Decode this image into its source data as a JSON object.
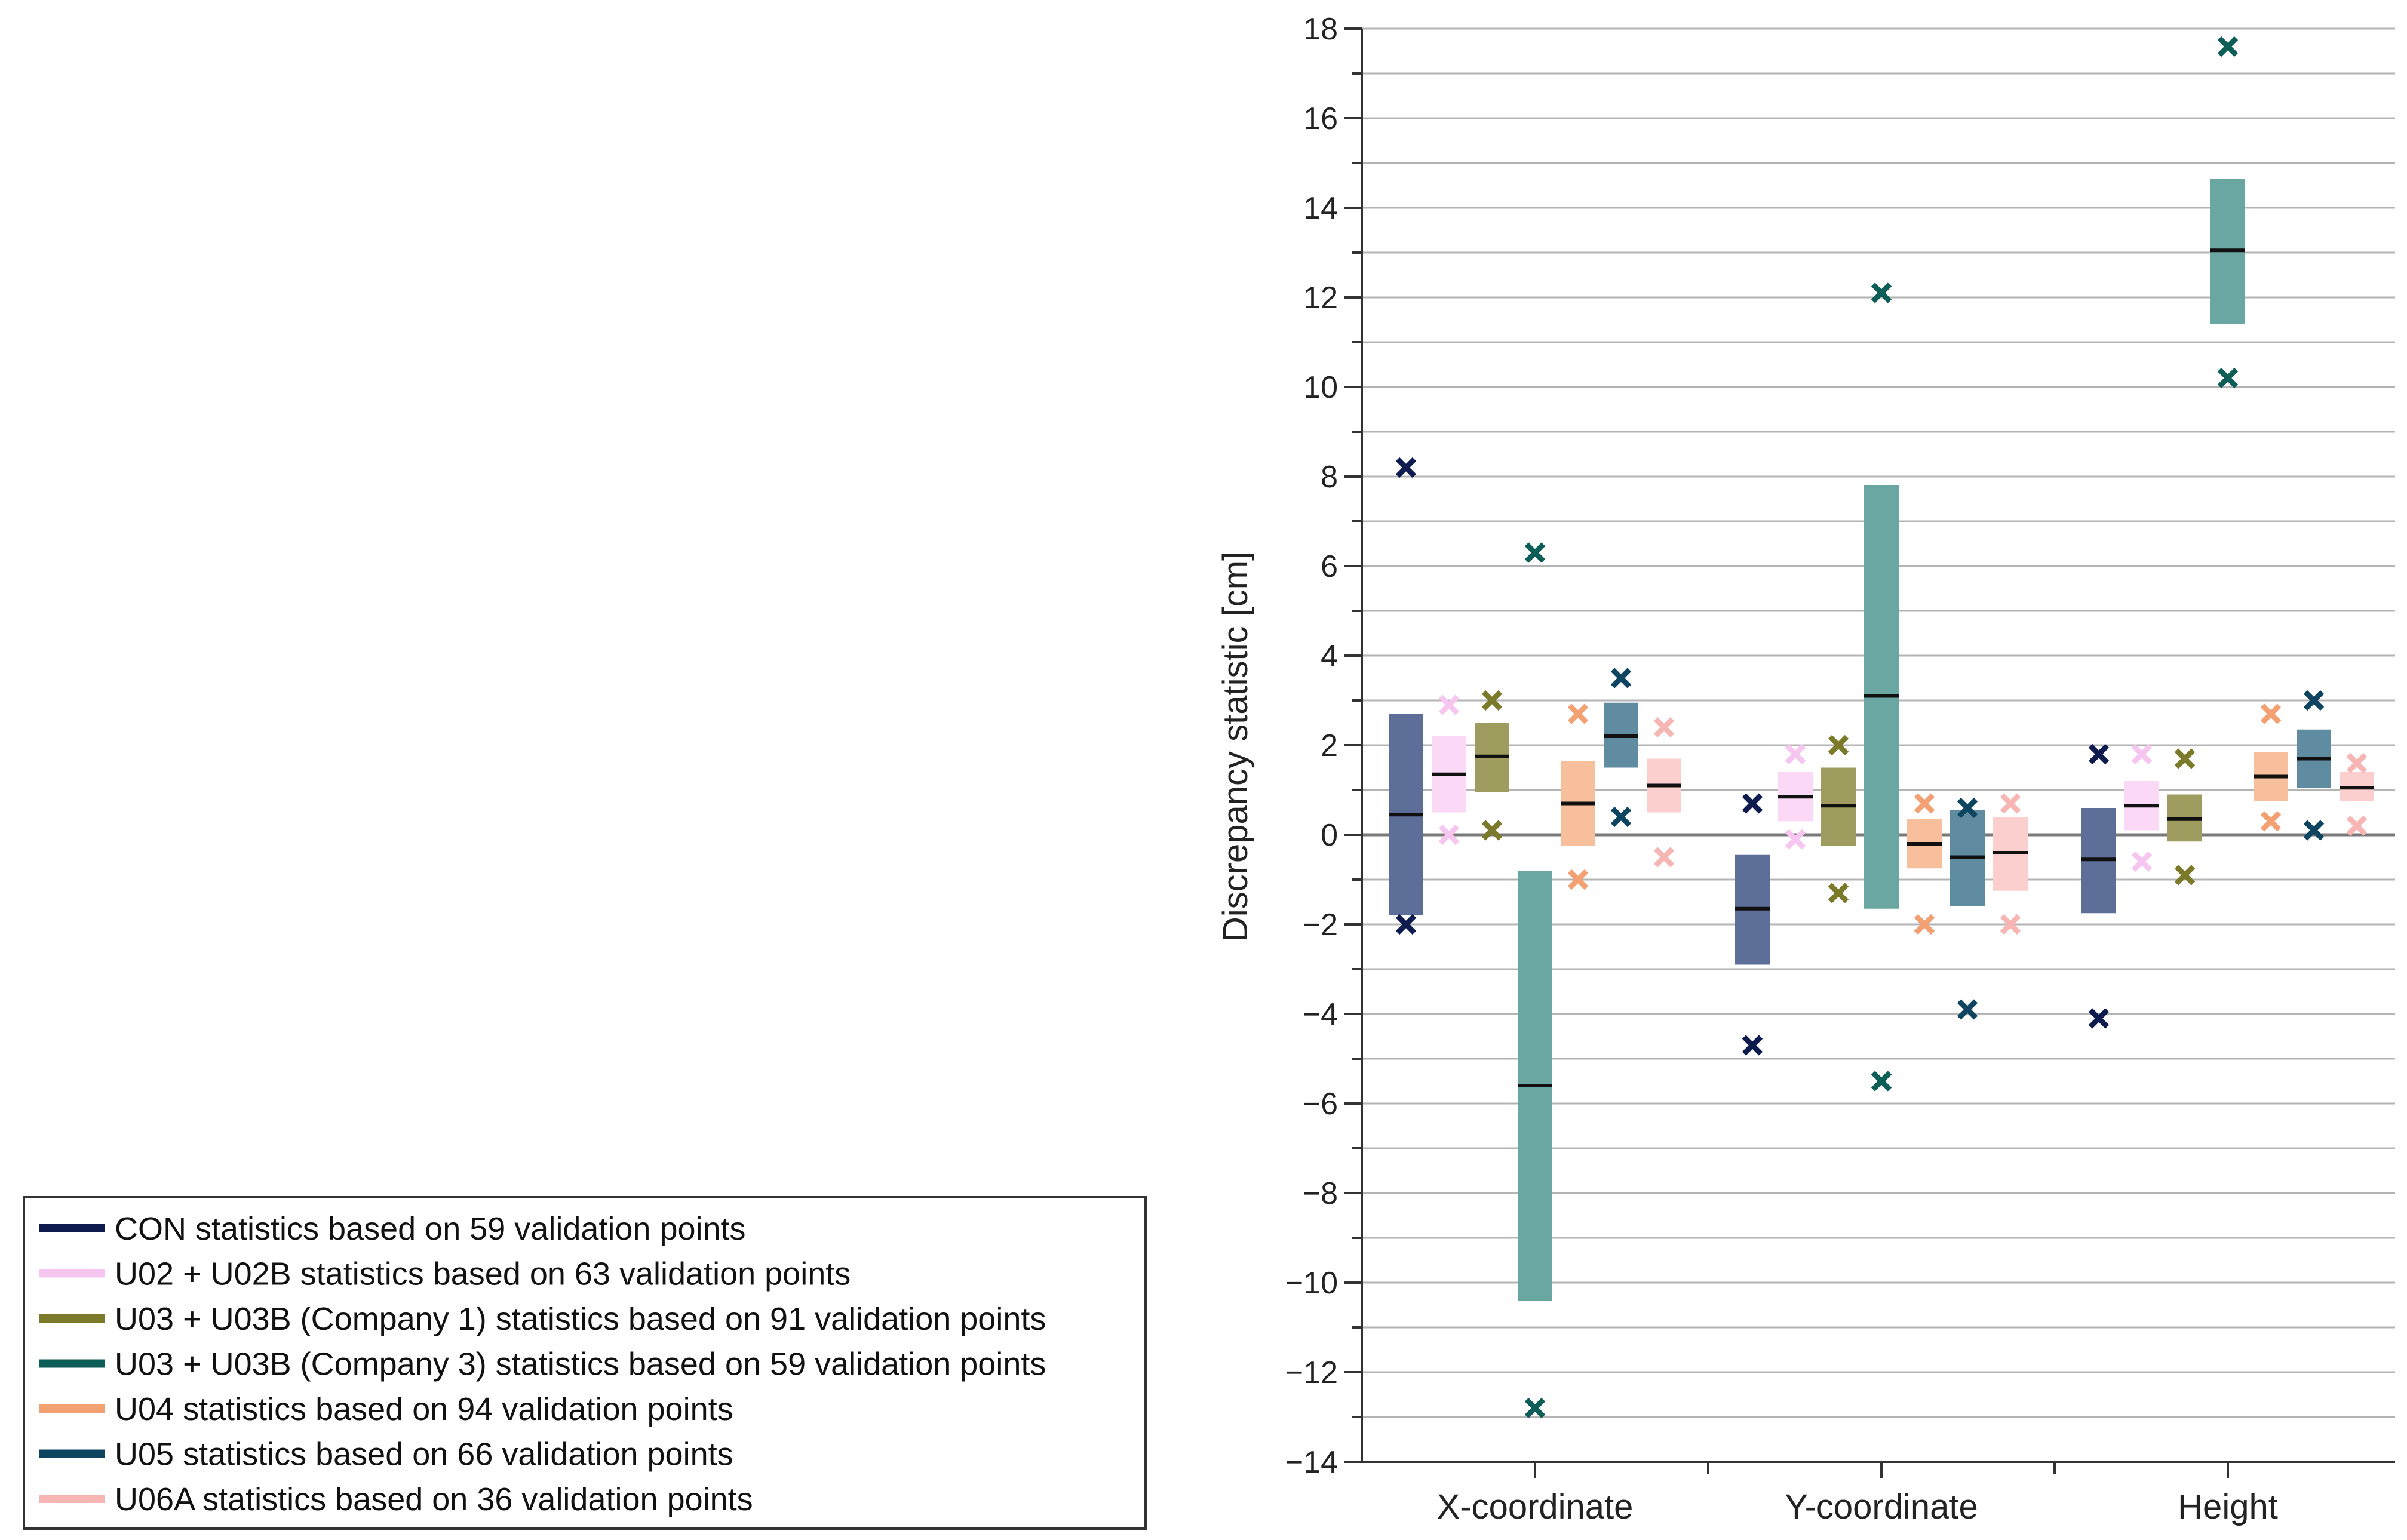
{
  "chart_data": {
    "type": "range-box",
    "title": "",
    "ylabel": "Discrepancy statistic [cm]",
    "xlabel": "",
    "ylim": [
      -14,
      18
    ],
    "yticks": [
      -14,
      -12,
      -10,
      -8,
      -6,
      -4,
      -2,
      0,
      2,
      4,
      6,
      8,
      10,
      12,
      14,
      16,
      18
    ],
    "grid": true,
    "legend_position": "bottom-left",
    "categories": [
      "X-coordinate",
      "Y-coordinate",
      "Height"
    ],
    "series": [
      {
        "name": "CON statistics based on 59 validation points",
        "color": "#0d1b4f",
        "box_color": "#5d6f99",
        "legend_color": "#0d1b4f",
        "data": [
          {
            "box_low": -1.8,
            "box_high": 2.7,
            "mean": 0.45,
            "max": 8.2,
            "min": -2.0
          },
          {
            "box_low": -2.9,
            "box_high": -0.45,
            "mean": -1.65,
            "max": 0.7,
            "min": -4.7
          },
          {
            "box_low": -1.75,
            "box_high": 0.6,
            "mean": -0.55,
            "max": 1.8,
            "min": -4.1
          }
        ]
      },
      {
        "name": "U02 + U02B statistics based on 63 validation points",
        "color": "#f7c6f0",
        "box_color": "#fbd8f5",
        "legend_color": "#f7c6f0",
        "data": [
          {
            "box_low": 0.5,
            "box_high": 2.2,
            "mean": 1.35,
            "max": 2.9,
            "min": 0.0
          },
          {
            "box_low": 0.3,
            "box_high": 1.4,
            "mean": 0.85,
            "max": 1.8,
            "min": -0.1
          },
          {
            "box_low": 0.1,
            "box_high": 1.2,
            "mean": 0.65,
            "max": 1.8,
            "min": -0.6
          }
        ]
      },
      {
        "name": "U03 + U03B (Company 1) statistics based on 91 validation points",
        "color": "#7b7a2a",
        "box_color": "#9e9c5f",
        "legend_color": "#7b7a2a",
        "data": [
          {
            "box_low": 0.95,
            "box_high": 2.5,
            "mean": 1.75,
            "max": 3.0,
            "min": 0.1
          },
          {
            "box_low": -0.25,
            "box_high": 1.5,
            "mean": 0.65,
            "max": 2.0,
            "min": -1.3
          },
          {
            "box_low": -0.15,
            "box_high": 0.9,
            "mean": 0.35,
            "max": 1.7,
            "min": -0.9
          }
        ]
      },
      {
        "name": "U03 + U03B (Company 3) statistics based on 59 validation points",
        "color": "#0e5e58",
        "box_color": "#6aa7a3",
        "legend_color": "#0e5e58",
        "data": [
          {
            "box_low": -10.4,
            "box_high": -0.8,
            "mean": -5.6,
            "max": 6.3,
            "min": -12.8
          },
          {
            "box_low": -1.65,
            "box_high": 7.8,
            "mean": 3.1,
            "max": 12.1,
            "min": -5.5
          },
          {
            "box_low": 11.4,
            "box_high": 14.65,
            "mean": 13.05,
            "max": 17.6,
            "min": 10.2
          }
        ]
      },
      {
        "name": "U04 statistics based on 94 validation points",
        "color": "#f3a072",
        "box_color": "#f8bf9c",
        "legend_color": "#f3a072",
        "data": [
          {
            "box_low": -0.25,
            "box_high": 1.65,
            "mean": 0.7,
            "max": 2.7,
            "min": -1.0
          },
          {
            "box_low": -0.75,
            "box_high": 0.35,
            "mean": -0.2,
            "max": 0.7,
            "min": -2.0
          },
          {
            "box_low": 0.75,
            "box_high": 1.85,
            "mean": 1.3,
            "max": 2.7,
            "min": 0.3
          }
        ]
      },
      {
        "name": "U05 statistics based on 66 validation points",
        "color": "#0d4560",
        "box_color": "#5f8ca1",
        "legend_color": "#0d4560",
        "data": [
          {
            "box_low": 1.5,
            "box_high": 2.95,
            "mean": 2.2,
            "max": 3.5,
            "min": 0.4
          },
          {
            "box_low": -1.6,
            "box_high": 0.55,
            "mean": -0.5,
            "max": 0.6,
            "min": -3.9
          },
          {
            "box_low": 1.05,
            "box_high": 2.35,
            "mean": 1.7,
            "max": 3.0,
            "min": 0.1
          }
        ]
      },
      {
        "name": "U06A statistics based on 36 validation points",
        "color": "#f7b6b4",
        "box_color": "#fbcfcd",
        "legend_color": "#f7b6b4",
        "data": [
          {
            "box_low": 0.5,
            "box_high": 1.7,
            "mean": 1.1,
            "max": 2.4,
            "min": -0.5
          },
          {
            "box_low": -1.25,
            "box_high": 0.4,
            "mean": -0.4,
            "max": 0.7,
            "min": -2.0
          },
          {
            "box_low": 0.75,
            "box_high": 1.4,
            "mean": 1.05,
            "max": 1.6,
            "min": 0.2
          }
        ]
      }
    ]
  }
}
